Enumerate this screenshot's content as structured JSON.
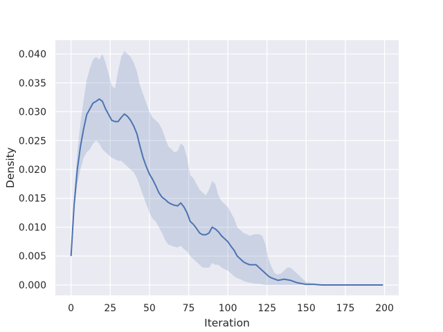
{
  "chart_data": {
    "type": "line",
    "title": "",
    "xlabel": "Iteration",
    "ylabel": "Density",
    "xlim": [
      -10,
      209
    ],
    "ylim": [
      -0.0018,
      0.0424
    ],
    "xticks": [
      0,
      25,
      50,
      75,
      100,
      125,
      150,
      175,
      200
    ],
    "xtick_labels": [
      "0",
      "25",
      "50",
      "75",
      "100",
      "125",
      "150",
      "175",
      "200"
    ],
    "yticks": [
      0.0,
      0.005,
      0.01,
      0.015,
      0.02,
      0.025,
      0.03,
      0.035,
      0.04
    ],
    "ytick_labels": [
      "0.000",
      "0.005",
      "0.010",
      "0.015",
      "0.020",
      "0.025",
      "0.030",
      "0.035",
      "0.040"
    ],
    "grid": true,
    "background": "#EAEAF2",
    "line_color": "#4C72B0",
    "band_color": "#4C72B0",
    "series": [
      {
        "x": [
          0,
          2,
          4,
          6,
          8,
          10,
          12,
          14,
          16,
          18,
          20,
          22,
          24,
          26,
          28,
          30,
          32,
          34,
          36,
          38,
          40,
          42,
          44,
          46,
          48,
          50,
          52,
          54,
          56,
          58,
          60,
          62,
          64,
          66,
          68,
          70,
          72,
          74,
          76,
          78,
          80,
          82,
          84,
          86,
          88,
          90,
          92,
          94,
          96,
          98,
          100,
          102,
          104,
          106,
          108,
          110,
          112,
          114,
          116,
          118,
          120,
          122,
          124,
          126,
          128,
          130,
          132,
          134,
          136,
          138,
          140,
          142,
          144,
          146,
          148,
          150,
          155,
          160,
          170,
          180,
          190,
          199
        ],
        "y": [
          0.005,
          0.014,
          0.02,
          0.024,
          0.027,
          0.0295,
          0.0305,
          0.0315,
          0.0318,
          0.0322,
          0.0318,
          0.0305,
          0.0295,
          0.0285,
          0.0283,
          0.0283,
          0.029,
          0.0296,
          0.0292,
          0.0285,
          0.0275,
          0.0262,
          0.024,
          0.022,
          0.0205,
          0.0192,
          0.0183,
          0.0172,
          0.016,
          0.0152,
          0.0148,
          0.0143,
          0.014,
          0.0138,
          0.0137,
          0.0142,
          0.0135,
          0.0125,
          0.011,
          0.0105,
          0.0098,
          0.009,
          0.0087,
          0.0087,
          0.009,
          0.01,
          0.0097,
          0.0092,
          0.0085,
          0.008,
          0.0075,
          0.0067,
          0.006,
          0.005,
          0.0045,
          0.004,
          0.0037,
          0.0035,
          0.0035,
          0.0035,
          0.003,
          0.0025,
          0.002,
          0.0015,
          0.0012,
          0.001,
          0.0008,
          0.0009,
          0.001,
          0.0009,
          0.0008,
          0.0006,
          0.0004,
          0.0003,
          0.0002,
          0.0001,
          0.0001,
          0.0,
          0.0,
          0.0,
          0.0,
          0.0
        ],
        "lower": [
          0.005,
          0.013,
          0.0175,
          0.02,
          0.022,
          0.023,
          0.0235,
          0.0245,
          0.025,
          0.0245,
          0.0235,
          0.023,
          0.0225,
          0.022,
          0.0218,
          0.0215,
          0.0215,
          0.021,
          0.0205,
          0.02,
          0.0195,
          0.0185,
          0.017,
          0.0155,
          0.014,
          0.0125,
          0.0115,
          0.011,
          0.01,
          0.009,
          0.0078,
          0.007,
          0.0068,
          0.0066,
          0.0065,
          0.0068,
          0.0062,
          0.0058,
          0.005,
          0.0045,
          0.004,
          0.0035,
          0.003,
          0.003,
          0.003,
          0.0038,
          0.0035,
          0.0035,
          0.003,
          0.0027,
          0.0025,
          0.002,
          0.0015,
          0.0012,
          0.001,
          0.0007,
          0.0005,
          0.0004,
          0.0003,
          0.0002,
          0.0002,
          0.0001,
          0.0,
          0.0,
          0.0,
          0.0,
          0.0,
          0.0,
          0.0,
          0.0,
          0.0,
          0.0,
          0.0,
          0.0,
          0.0,
          0.0,
          0.0,
          0.0,
          0.0,
          0.0,
          0.0,
          0.0
        ],
        "upper": [
          0.005,
          0.016,
          0.023,
          0.028,
          0.032,
          0.0355,
          0.0375,
          0.039,
          0.0395,
          0.039,
          0.04,
          0.0385,
          0.0365,
          0.0345,
          0.034,
          0.037,
          0.0395,
          0.0405,
          0.04,
          0.0395,
          0.0385,
          0.037,
          0.0345,
          0.033,
          0.0315,
          0.03,
          0.029,
          0.0285,
          0.028,
          0.027,
          0.0255,
          0.024,
          0.0235,
          0.023,
          0.0232,
          0.0245,
          0.024,
          0.022,
          0.019,
          0.0185,
          0.0175,
          0.0165,
          0.016,
          0.0155,
          0.0165,
          0.018,
          0.0175,
          0.0155,
          0.0145,
          0.014,
          0.0135,
          0.0125,
          0.0115,
          0.01,
          0.0095,
          0.009,
          0.0088,
          0.0085,
          0.0087,
          0.0088,
          0.0088,
          0.0085,
          0.007,
          0.0045,
          0.003,
          0.002,
          0.0018,
          0.002,
          0.0025,
          0.003,
          0.003,
          0.0025,
          0.002,
          0.0015,
          0.001,
          0.0005,
          0.0003,
          0.0001,
          0.0,
          0.0,
          0.0,
          0.0
        ]
      }
    ]
  }
}
